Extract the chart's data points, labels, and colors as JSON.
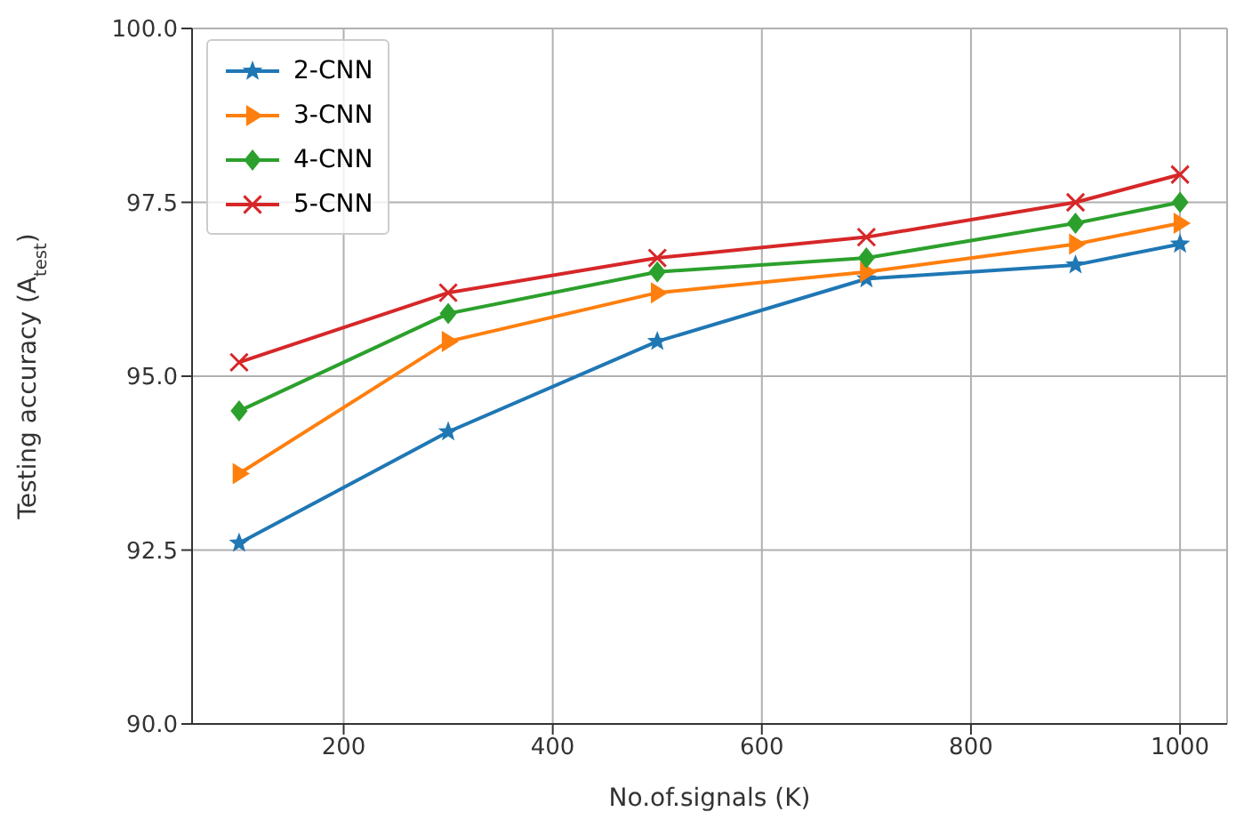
{
  "chart_data": {
    "type": "line",
    "xlabel": "No.of.signals (K)",
    "ylabel": "Testing accuracy (A$_{test}$)",
    "x": [
      100,
      300,
      500,
      700,
      900,
      1000
    ],
    "series": [
      {
        "name": "2-CNN",
        "color": "#1f77b4",
        "marker": "star",
        "values": [
          92.6,
          94.2,
          95.5,
          96.4,
          96.6,
          96.9
        ]
      },
      {
        "name": "3-CNN",
        "color": "#ff7f0e",
        "marker": "triangle",
        "values": [
          93.6,
          95.5,
          96.2,
          96.5,
          96.9,
          97.2
        ]
      },
      {
        "name": "4-CNN",
        "color": "#2ca02c",
        "marker": "diamond",
        "values": [
          94.5,
          95.9,
          96.5,
          96.7,
          97.2,
          97.5
        ]
      },
      {
        "name": "5-CNN",
        "color": "#d62728",
        "marker": "cross",
        "values": [
          95.2,
          96.2,
          96.7,
          97.0,
          97.5,
          97.9
        ]
      }
    ],
    "xlim": [
      55,
      1045
    ],
    "xticks": [
      200,
      400,
      600,
      800,
      1000
    ],
    "ylim": [
      90,
      100
    ],
    "yticks": [
      {
        "value": 90,
        "label": "90.0"
      },
      {
        "value": 92.5,
        "label": "92.5"
      },
      {
        "value": 95,
        "label": "95.0"
      },
      {
        "value": 97.5,
        "label": "97.5"
      },
      {
        "value": 100,
        "label": "100.0"
      }
    ],
    "grid": true,
    "legend": "top left",
    "line_style": "solid"
  }
}
